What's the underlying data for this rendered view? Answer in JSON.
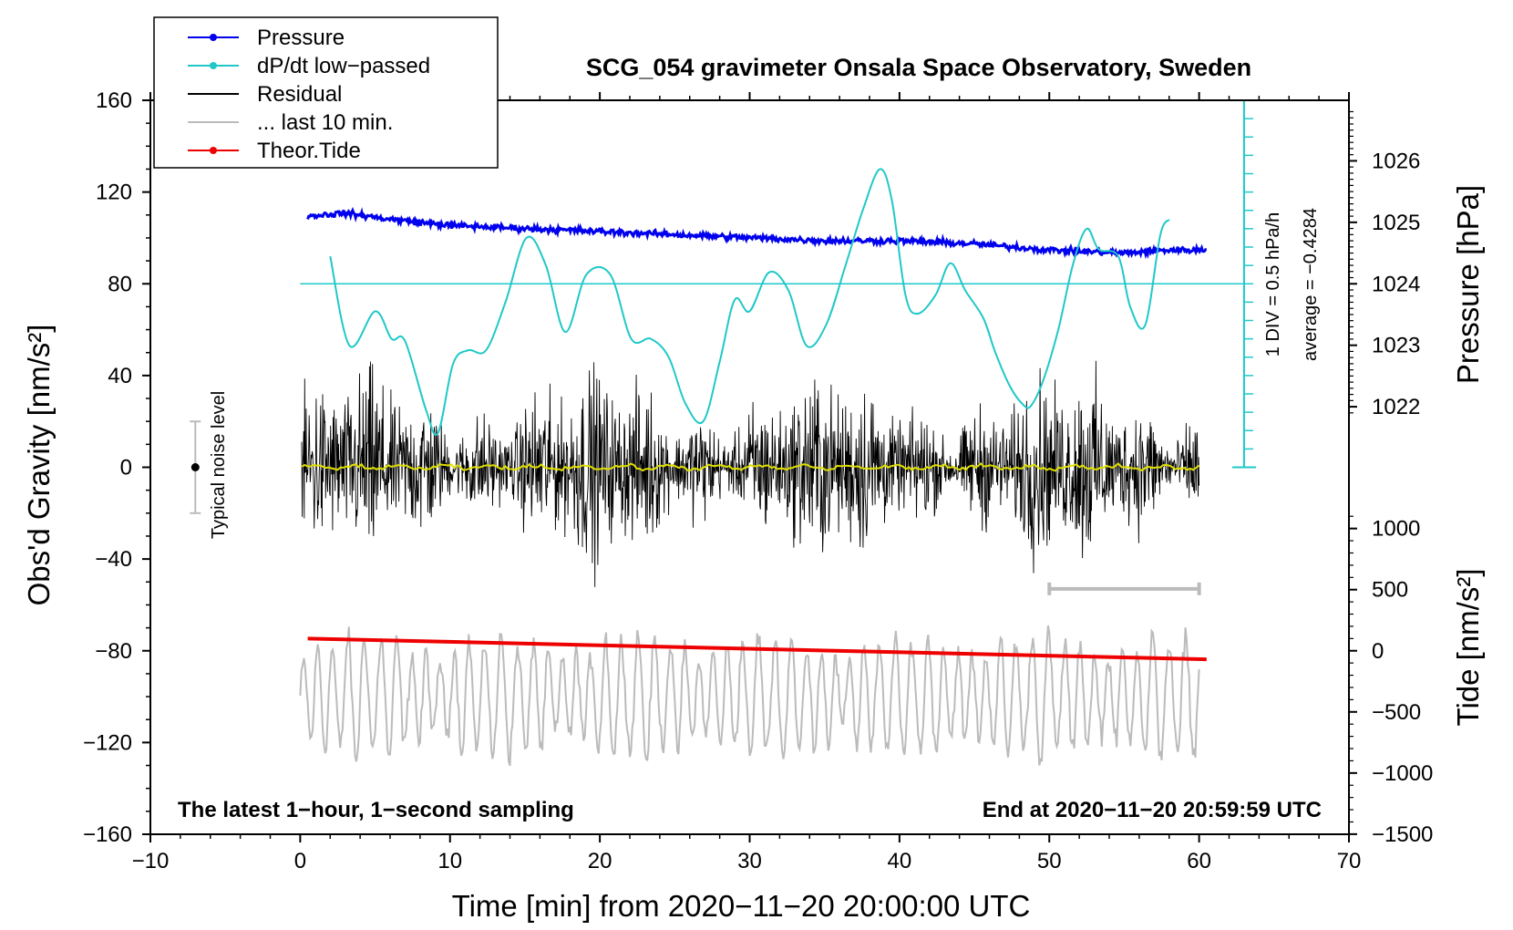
{
  "chart_data": {
    "type": "line",
    "title": "SCG_054 gravimeter Onsala Space Observatory, Sweden",
    "xlabel": "Time [min] from 2020−11−20 20:00:00 UTC",
    "ylabel_left": "Obs'd Gravity [nm/s²]",
    "ylabel_right_top": "Pressure [hPa]",
    "ylabel_right_bottom": "Tide [nm/s²]",
    "xlim": [
      -10,
      70
    ],
    "ylim_left": [
      -160,
      160
    ],
    "x_ticks": [
      "−10",
      "0",
      "10",
      "20",
      "30",
      "40",
      "50",
      "60",
      "70"
    ],
    "x_tick_values": [
      -10,
      0,
      10,
      20,
      30,
      40,
      50,
      60,
      70
    ],
    "y_ticks_left": [
      "160",
      "120",
      "80",
      "40",
      "0",
      "−40",
      "−80",
      "−120",
      "−160"
    ],
    "y_tick_values_left": [
      160,
      120,
      80,
      40,
      0,
      -40,
      -80,
      -120,
      -160
    ],
    "pressure_ticks": [
      "1026",
      "1025",
      "1024",
      "1023",
      "1022"
    ],
    "pressure_tick_values": [
      1026,
      1025,
      1024,
      1023,
      1022
    ],
    "pressure_to_gravity": {
      "p0": 1024,
      "g0": 80,
      "g_per_hpa": 26.8
    },
    "tide_ticks": [
      "1000",
      "500",
      "0",
      "−500",
      "−1000",
      "−1500"
    ],
    "tide_tick_values": [
      1000,
      500,
      0,
      -500,
      -1000,
      -1500
    ],
    "tide_to_gravity": {
      "t0": 0,
      "g0": -80,
      "g_per_unit": 0.0533
    },
    "legend": [
      {
        "label": "Pressure",
        "color": "#0000ee",
        "marker": true
      },
      {
        "label": "dP/dt low−passed",
        "color": "#20c8c8",
        "marker": true
      },
      {
        "label": "Residual",
        "color": "#000000",
        "marker": false
      },
      {
        "label": "... last 10 min.",
        "color": "#bbbbbb",
        "marker": false
      },
      {
        "label": "Theor.Tide",
        "color": "#ee0000",
        "marker": true
      }
    ],
    "annotations": {
      "bottom_left": "The latest 1−hour, 1−second sampling",
      "bottom_right": "End at 2020−11−20 20:59:59 UTC",
      "noise_label": "Typical noise level",
      "div_label": "1 DIV = 0.5 hPa/h",
      "average_label": "average = −0.4284"
    },
    "noise_bar": {
      "x": -7,
      "center": 0,
      "half_range": 20
    },
    "dpdt_scale": {
      "x": 63,
      "baseline_g": 0,
      "top_g": 160,
      "zero_line_g": 80,
      "g_per_div": 8
    },
    "last10_marker": {
      "x_start": 50,
      "x_end": 60,
      "y": -53
    },
    "series": [
      {
        "name": "Pressure",
        "color": "#0000ee",
        "x": [
          0.5,
          3,
          6,
          10,
          15,
          20,
          25,
          30,
          35,
          40,
          45,
          50,
          55,
          58,
          60.5
        ],
        "y": [
          1025.1,
          1025.15,
          1025.05,
          1024.95,
          1024.9,
          1024.85,
          1024.8,
          1024.75,
          1024.7,
          1024.7,
          1024.65,
          1024.55,
          1024.5,
          1024.55,
          1024.55
        ]
      },
      {
        "name": "dP/dt low-passed",
        "color": "#20c8c8",
        "x": [
          2,
          3.3,
          5,
          6.1,
          7,
          8.4,
          9.2,
          10.2,
          11.2,
          12.4,
          13.7,
          15.1,
          16.4,
          17.7,
          19.1,
          20.7,
          22.1,
          23.4,
          24.6,
          25.7,
          26.9,
          28,
          29,
          30,
          31.3,
          32.6,
          33.8,
          35.1,
          36.4,
          37.6,
          38.7,
          39.5,
          40.4,
          41.2,
          42.4,
          43.4,
          44.4,
          45.6,
          46.4,
          47.4,
          48.3,
          48.8,
          49.6,
          50.6,
          51.6,
          52.5,
          53.3,
          54.6,
          55.4,
          56.4,
          57.4,
          58
        ],
        "y": [
          92,
          53,
          68,
          56,
          55,
          25,
          15,
          45,
          51,
          51,
          72,
          100,
          88,
          59,
          84,
          84,
          56,
          56,
          48,
          28,
          20,
          46,
          73,
          68,
          85,
          77,
          53,
          62,
          88,
          113,
          130,
          116,
          75,
          67,
          75,
          89,
          77,
          65,
          50,
          35,
          27,
          27,
          38,
          60,
          89,
          104,
          95,
          92,
          70,
          62,
          101,
          108
        ]
      },
      {
        "name": "Theor.Tide",
        "color": "#ee0000",
        "x": [
          0.5,
          60.5
        ],
        "y": [
          100,
          -70
        ]
      }
    ]
  }
}
